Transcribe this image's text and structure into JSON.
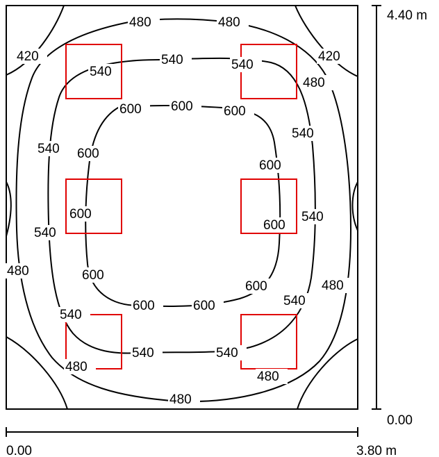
{
  "scale": {
    "width_start": "0.00",
    "width_end": "3.80 m",
    "height_start": "0.00",
    "height_end": "4.40 m"
  },
  "contour_labels": [
    {
      "text": "480"
    },
    {
      "text": "480"
    },
    {
      "text": "420"
    },
    {
      "text": "420"
    },
    {
      "text": "540"
    },
    {
      "text": "540"
    },
    {
      "text": "540"
    },
    {
      "text": "480"
    },
    {
      "text": "600"
    },
    {
      "text": "600"
    },
    {
      "text": "600"
    },
    {
      "text": "540"
    },
    {
      "text": "540"
    },
    {
      "text": "600"
    },
    {
      "text": "600"
    },
    {
      "text": "600"
    },
    {
      "text": "600"
    },
    {
      "text": "540"
    },
    {
      "text": "540"
    },
    {
      "text": "480"
    },
    {
      "text": "600"
    },
    {
      "text": "600"
    },
    {
      "text": "480"
    },
    {
      "text": "600"
    },
    {
      "text": "600"
    },
    {
      "text": "600"
    },
    {
      "text": "540"
    },
    {
      "text": "540"
    },
    {
      "text": "540"
    },
    {
      "text": "540"
    },
    {
      "text": "480"
    },
    {
      "text": "480"
    },
    {
      "text": "480"
    }
  ],
  "colors": {
    "contour": "#000000",
    "luminaire": "#e00000"
  }
}
